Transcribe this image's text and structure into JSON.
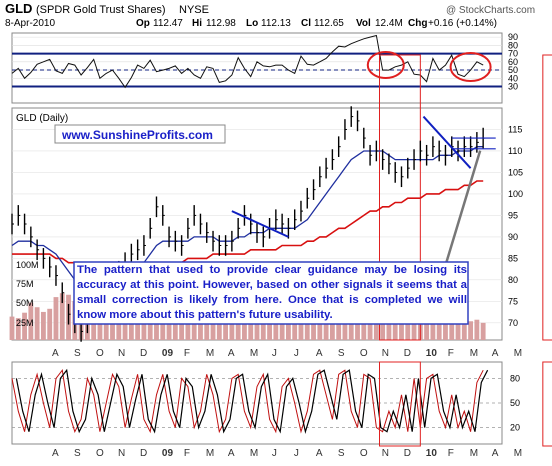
{
  "header": {
    "symbol": "GLD",
    "name": "(SPDR Gold Trust Shares)",
    "exchange": "NYSE",
    "date": "8-Apr-2010",
    "brand": "@ StockCharts.com",
    "op_label": "Op",
    "op": "112.47",
    "hi_label": "Hi",
    "hi": "112.98",
    "lo_label": "Lo",
    "lo": "112.13",
    "cl_label": "Cl",
    "cl": "112.65",
    "vol_label": "Vol",
    "vol": "12.4M",
    "chg_label": "Chg",
    "chg": "+0.16 (+0.14%)"
  },
  "main": {
    "label": "GLD (Daily)",
    "watermark": "www.SunshineProfits.com",
    "annotation": "The pattern that used to provide clear guidance may be losing its accuracy at this point. However, based on other signals it seems that a small correction is likely from here. Once that is completed we will know more about this pattern's future usability."
  },
  "colors": {
    "price_bar": "#000000",
    "ma_short": "#1f2f9f",
    "ma_long": "#d81010",
    "highlight": "#e02020",
    "trendline": "#1020c0",
    "volume": "#d8a0a0",
    "rsi_band": "#102080",
    "watermark": "#1a20c8",
    "annotation_border": "#3040c0"
  },
  "chart_data": [
    {
      "type": "line",
      "name": "RSI panel",
      "ylim": [
        10,
        95
      ],
      "ticks": [
        30,
        40,
        50,
        60,
        70,
        80,
        90
      ],
      "levels": [
        30,
        50,
        70
      ],
      "x": [
        0,
        20,
        40,
        60,
        80,
        100,
        120,
        140,
        160,
        180,
        200,
        220,
        240,
        260,
        280,
        300,
        320,
        340,
        360,
        380,
        400,
        420,
        440,
        460,
        480,
        500,
        520,
        540,
        560,
        580,
        600,
        620,
        640,
        660,
        680,
        700,
        720,
        740,
        760,
        780,
        800,
        820,
        840,
        860,
        880,
        900,
        920,
        940,
        960,
        980,
        1000,
        1020,
        1040,
        1060,
        1080,
        1100,
        1120,
        1140,
        1160,
        1180,
        1200,
        1220,
        1240,
        1260,
        1280,
        1300,
        1320,
        1340,
        1360,
        1380,
        1400,
        1420,
        1440,
        1460,
        1480,
        1500
      ],
      "values": [
        46,
        52,
        40,
        47,
        57,
        60,
        63,
        49,
        46,
        58,
        56,
        44,
        53,
        63,
        40,
        46,
        50,
        40,
        29,
        41,
        56,
        52,
        62,
        48,
        50,
        52,
        55,
        46,
        52,
        44,
        40,
        54,
        52,
        35,
        37,
        44,
        65,
        52,
        42,
        60,
        55,
        54,
        56,
        56,
        50,
        46,
        67,
        57,
        56,
        60,
        64,
        72,
        79,
        78,
        82,
        85,
        88,
        90,
        92,
        50,
        50,
        54,
        56,
        60,
        45,
        44,
        36,
        64,
        50,
        56,
        68,
        45,
        42,
        50,
        60,
        56
      ]
    },
    {
      "type": "bar",
      "name": "GLD (Daily)",
      "ylim": [
        66,
        120
      ],
      "ticks": [
        70,
        75,
        80,
        85,
        90,
        95,
        100,
        105,
        110,
        115
      ],
      "months": [
        "A",
        "S",
        "O",
        "N",
        "D",
        "09",
        "F",
        "M",
        "A",
        "M",
        "J",
        "J",
        "A",
        "S",
        "O",
        "N",
        "D",
        "10",
        "F",
        "M",
        "A",
        "M"
      ],
      "x": [
        0,
        20,
        40,
        60,
        80,
        100,
        120,
        140,
        160,
        180,
        200,
        220,
        240,
        260,
        280,
        300,
        320,
        340,
        360,
        380,
        400,
        420,
        440,
        460,
        480,
        500,
        520,
        540,
        560,
        580,
        600,
        620,
        640,
        660,
        680,
        700,
        720,
        740,
        760,
        780,
        800,
        820,
        840,
        860,
        880,
        900,
        920,
        940,
        960,
        980,
        1000,
        1020,
        1040,
        1060,
        1080,
        1100,
        1120,
        1140,
        1160,
        1180,
        1200,
        1220,
        1240,
        1260,
        1280,
        1300,
        1320,
        1340,
        1360,
        1380,
        1400,
        1420,
        1440,
        1460,
        1480,
        1500
      ],
      "close": [
        93,
        95,
        93,
        90,
        87,
        85,
        83,
        81,
        77,
        72,
        70,
        68,
        70,
        73,
        74,
        77,
        80,
        82,
        84,
        86,
        87,
        88,
        92,
        97,
        95,
        90,
        89,
        88,
        92,
        95,
        93,
        91,
        89,
        88,
        88,
        89,
        92,
        95,
        93,
        91,
        90,
        92,
        94,
        93,
        92,
        94,
        96,
        99,
        101,
        104,
        106,
        108,
        111,
        115,
        118,
        117,
        113,
        109,
        110,
        108,
        107,
        105,
        104,
        106,
        108,
        110,
        109,
        111,
        110,
        109,
        111,
        110,
        111,
        111,
        112,
        113
      ],
      "ma_short": [
        88,
        89,
        89,
        89,
        88,
        88,
        87,
        86,
        84,
        82,
        80,
        78,
        77,
        76,
        76,
        77,
        77,
        78,
        80,
        82,
        83,
        84,
        86,
        88,
        89,
        89,
        89,
        89,
        89,
        90,
        90,
        90,
        90,
        89,
        89,
        89,
        90,
        90,
        91,
        91,
        91,
        92,
        92,
        92,
        92,
        92,
        93,
        94,
        96,
        98,
        100,
        102,
        104,
        106,
        108,
        109,
        110,
        110,
        110,
        110,
        109,
        108,
        108,
        108,
        108,
        108,
        108,
        108,
        109,
        109,
        109,
        110,
        110,
        110,
        111,
        111
      ],
      "ma_long": [
        86,
        86,
        86,
        86,
        86,
        86,
        86,
        85,
        85,
        84,
        84,
        83,
        82,
        82,
        82,
        82,
        82,
        82,
        82,
        82,
        82,
        82,
        83,
        83,
        84,
        84,
        84,
        84,
        85,
        85,
        85,
        85,
        86,
        86,
        86,
        86,
        86,
        86,
        87,
        87,
        87,
        87,
        87,
        88,
        88,
        88,
        88,
        89,
        89,
        90,
        90,
        91,
        92,
        92,
        93,
        94,
        95,
        96,
        96,
        97,
        97,
        98,
        98,
        99,
        99,
        99,
        100,
        100,
        100,
        101,
        101,
        101,
        102,
        102,
        103,
        103
      ],
      "volume_ticks": [
        "100M",
        "75M",
        "50M",
        "25M"
      ],
      "volume": [
        30,
        28,
        35,
        48,
        42,
        36,
        40,
        55,
        60,
        58,
        50,
        45,
        40,
        38,
        36,
        34,
        30,
        28,
        35,
        32,
        38,
        40,
        36,
        30,
        28,
        25,
        22,
        26,
        28,
        30,
        26,
        24,
        22,
        20,
        22,
        25,
        28,
        30,
        26,
        24,
        22,
        25,
        28,
        30,
        26,
        24,
        28,
        32,
        35,
        38,
        42,
        40,
        38,
        36,
        34,
        32,
        30,
        28,
        26,
        30,
        28,
        26,
        24,
        22,
        26,
        28,
        30,
        32,
        28,
        26,
        24,
        22,
        20,
        24,
        26,
        22
      ],
      "highlight_windows": [
        [
          1170,
          1300
        ],
        [
          1690,
          1810
        ]
      ],
      "annotation_arrow_target": [
        1500,
        111
      ]
    },
    {
      "type": "line",
      "name": "Stochastic panel",
      "ylim": [
        0,
        100
      ],
      "ticks": [
        20,
        50,
        80
      ],
      "levels": [
        20,
        50,
        80
      ],
      "months": [
        "A",
        "S",
        "O",
        "N",
        "D",
        "09",
        "F",
        "M",
        "A",
        "M",
        "J",
        "J",
        "A",
        "S",
        "O",
        "N",
        "D",
        "10",
        "F",
        "M",
        "A",
        "M"
      ],
      "x": [
        0,
        20,
        40,
        60,
        80,
        100,
        120,
        140,
        160,
        180,
        200,
        220,
        240,
        260,
        280,
        300,
        320,
        340,
        360,
        380,
        400,
        420,
        440,
        460,
        480,
        500,
        520,
        540,
        560,
        580,
        600,
        620,
        640,
        660,
        680,
        700,
        720,
        740,
        760,
        780,
        800,
        820,
        840,
        860,
        880,
        900,
        920,
        940,
        960,
        980,
        1000,
        1020,
        1040,
        1060,
        1080,
        1100,
        1120,
        1140,
        1160,
        1180,
        1200,
        1220,
        1240,
        1260,
        1280,
        1300,
        1320,
        1340,
        1360,
        1380,
        1400,
        1420,
        1440,
        1460,
        1480,
        1500
      ],
      "values": [
        80,
        40,
        15,
        60,
        85,
        50,
        20,
        80,
        90,
        40,
        15,
        30,
        80,
        60,
        15,
        50,
        85,
        70,
        20,
        55,
        85,
        30,
        15,
        60,
        85,
        40,
        20,
        80,
        70,
        20,
        40,
        85,
        60,
        15,
        30,
        80,
        85,
        40,
        20,
        70,
        85,
        30,
        15,
        70,
        80,
        50,
        15,
        40,
        85,
        90,
        60,
        30,
        85,
        90,
        40,
        20,
        85,
        80,
        20,
        15,
        40,
        20,
        60,
        15,
        80,
        20,
        80,
        85,
        40,
        20,
        60,
        20,
        40,
        15,
        75,
        90
      ]
    }
  ]
}
